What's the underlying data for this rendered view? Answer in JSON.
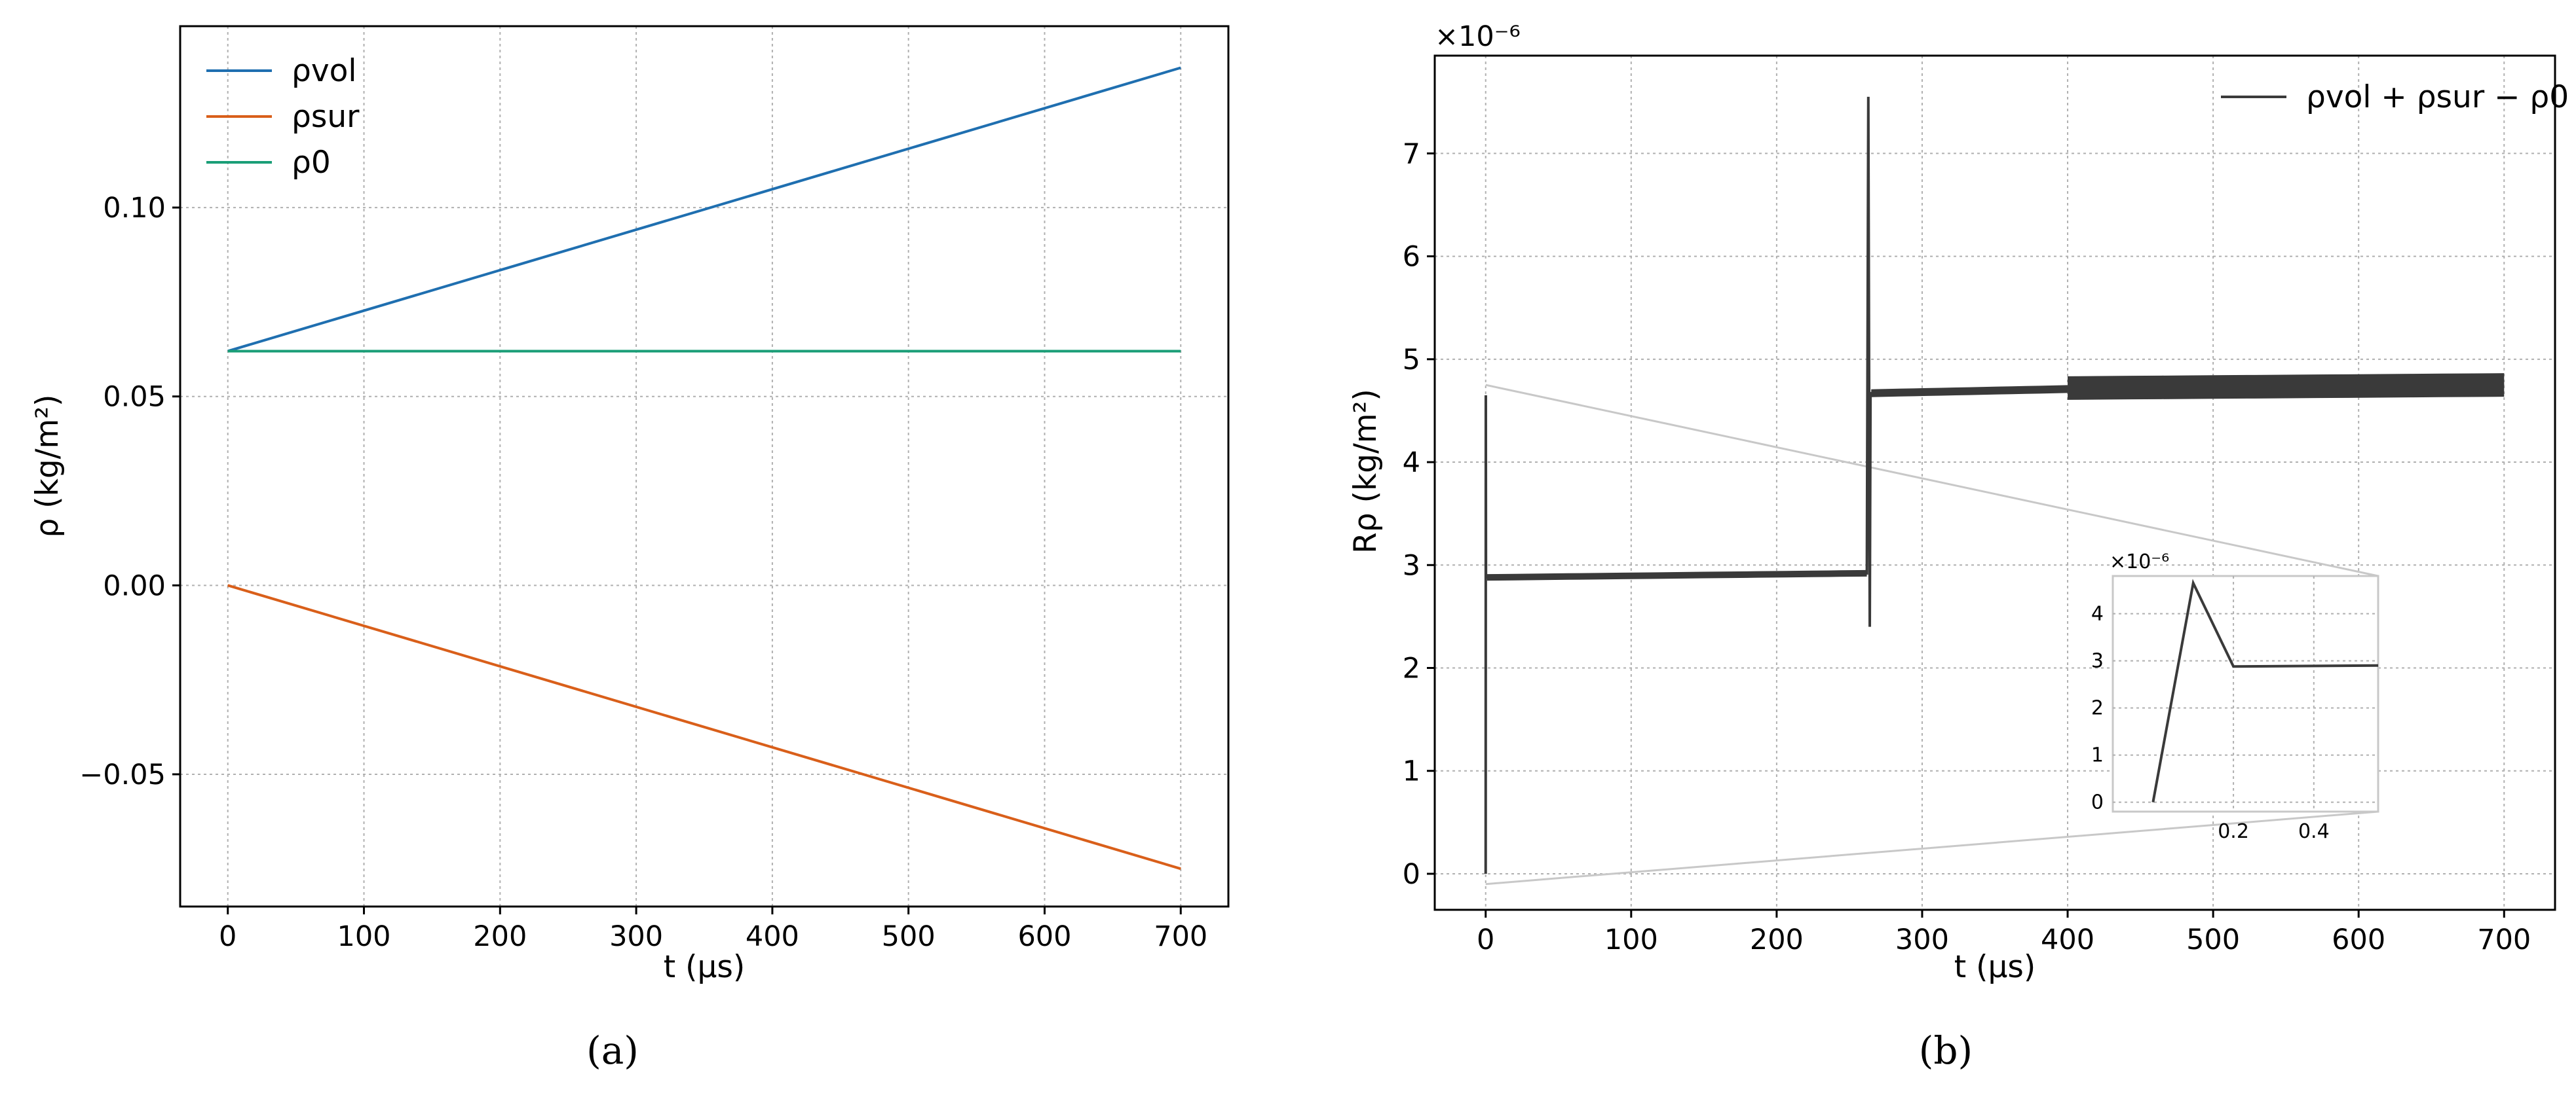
{
  "chart_data": [
    {
      "type": "line",
      "caption": "(a)",
      "xlabel": "t (μs)",
      "ylabel": "ρ (kg/m²)",
      "xlim": [
        -35,
        735
      ],
      "ylim": [
        -0.085,
        0.148
      ],
      "xticks": [
        0,
        100,
        200,
        300,
        400,
        500,
        600,
        700
      ],
      "yticks": [
        -0.05,
        0.0,
        0.05,
        0.1
      ],
      "ytick_labels": [
        "−0.05",
        "0.00",
        "0.05",
        "0.10"
      ],
      "grid": true,
      "legend_position": "top-left",
      "series": [
        {
          "name": "ρvol",
          "color": "#1f6fb0",
          "x": [
            0,
            700
          ],
          "y": [
            0.062,
            0.137
          ]
        },
        {
          "name": "ρsur",
          "color": "#d95f1a",
          "x": [
            0,
            700
          ],
          "y": [
            0.0,
            -0.075
          ]
        },
        {
          "name": "ρ0",
          "color": "#1a9e77",
          "x": [
            0,
            700
          ],
          "y": [
            0.062,
            0.062
          ]
        }
      ]
    },
    {
      "type": "line",
      "caption": "(b)",
      "xlabel": "t (μs)",
      "ylabel": "Rρ (kg/m²)",
      "y_multiplier": "×10⁻⁶",
      "xlim": [
        -35,
        735
      ],
      "ylim": [
        -0.35,
        7.95
      ],
      "xticks": [
        0,
        100,
        200,
        300,
        400,
        500,
        600,
        700
      ],
      "yticks": [
        0,
        1,
        2,
        3,
        4,
        5,
        6,
        7
      ],
      "grid": true,
      "legend_position": "top-right",
      "series": [
        {
          "name": "ρvol + ρsur − ρ0",
          "color": "#3a3a3a",
          "x": [
            0,
            0.1,
            0.2,
            262,
            263,
            264,
            264.5,
            265,
            270,
            400,
            700
          ],
          "y": [
            0,
            4.65,
            2.88,
            2.92,
            7.55,
            2.4,
            4.66,
            4.67,
            4.68,
            4.72,
            4.75
          ]
        }
      ],
      "inset": {
        "xlim": [
          -0.1,
          0.56
        ],
        "ylim": [
          -0.2,
          4.8
        ],
        "xticks": [
          0.2,
          0.4
        ],
        "yticks": [
          0,
          1,
          2,
          3,
          4
        ],
        "y_multiplier": "×10⁻⁶",
        "x": [
          0,
          0.1,
          0.2,
          0.56
        ],
        "y": [
          0,
          4.65,
          2.88,
          2.9
        ]
      }
    }
  ]
}
